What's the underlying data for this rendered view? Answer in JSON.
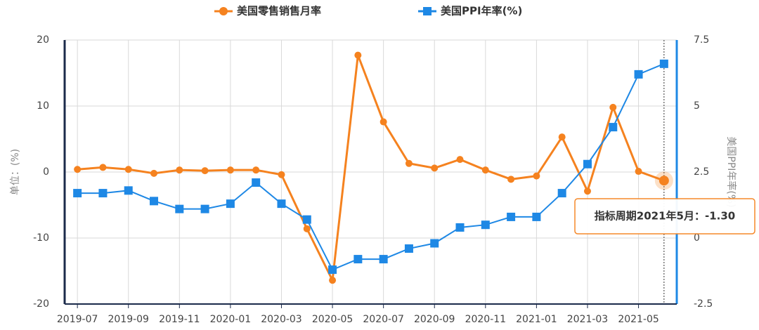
{
  "chart_data": {
    "type": "line",
    "categories": [
      "2019-07",
      null,
      "2019-09",
      null,
      "2019-11",
      null,
      "2020-01",
      null,
      "2020-03",
      null,
      "2020-05",
      null,
      "2020-07",
      null,
      "2020-09",
      null,
      "2020-11",
      null,
      "2021-01",
      null,
      "2021-03",
      null,
      "2021-05",
      null
    ],
    "series": [
      {
        "name": "美国零售销售月率",
        "color": "#f5821f",
        "marker": "circle",
        "values": [
          0.4,
          0.7,
          0.4,
          -0.2,
          0.3,
          0.2,
          0.3,
          0.3,
          -0.4,
          -8.6,
          -16.4,
          17.7,
          7.6,
          1.3,
          0.6,
          1.9,
          0.3,
          -1.1,
          -0.6,
          5.3,
          -2.9,
          9.8,
          0.1,
          -1.3
        ]
      },
      {
        "name": "美国PPI年率(%)",
        "color": "#1e88e5",
        "marker": "square",
        "axis": "y2",
        "values": [
          1.7,
          1.7,
          1.8,
          1.4,
          1.1,
          1.1,
          1.3,
          2.1,
          1.3,
          0.7,
          -1.2,
          -0.8,
          -0.8,
          -0.4,
          -0.2,
          0.4,
          0.5,
          0.8,
          0.8,
          1.7,
          2.8,
          4.2,
          6.2,
          6.6
        ]
      }
    ],
    "y_label": "单位：(%)",
    "y2_label": "美国PPI年率(%)",
    "ylim": [
      -20,
      20
    ],
    "yticks": [
      20,
      10,
      0,
      -10,
      -20
    ],
    "y2lim": [
      -2.5,
      7.5
    ],
    "y2ticks": [
      7.5,
      5,
      2.5,
      0,
      -2.5
    ],
    "grid": true,
    "legend": "top",
    "tooltip": "指标周期2021年5月：-1.30"
  }
}
